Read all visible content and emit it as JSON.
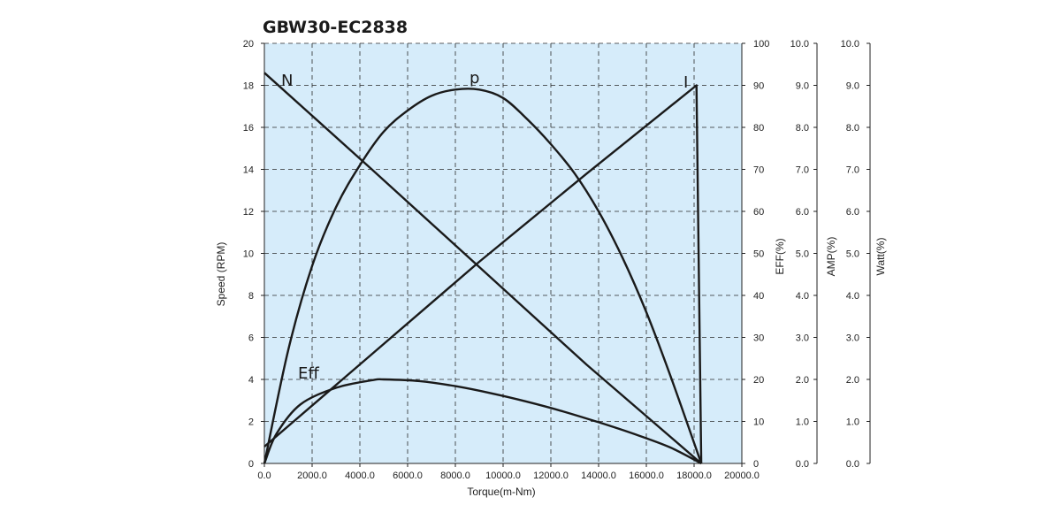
{
  "chart_data": {
    "type": "line",
    "title": "GBW30-EC2838",
    "xlabel": "Torque(m-Nm)",
    "xlim": [
      0,
      20000
    ],
    "x_ticks": [
      "0.0",
      "2000.0",
      "4000.0",
      "6000.0",
      "8000.0",
      "10000.0",
      "12000.0",
      "14000.0",
      "16000.0",
      "18000.0",
      "20000.0"
    ],
    "grid": true,
    "background_color": "#d6ecfa",
    "line_color": "#1a1a1a",
    "axes": {
      "speed": {
        "label": "Speed (RPM)",
        "lim": [
          0,
          20
        ],
        "ticks": [
          "0",
          "2",
          "4",
          "6",
          "8",
          "10",
          "12",
          "14",
          "16",
          "18",
          "20"
        ]
      },
      "eff": {
        "label": "EFF(%)",
        "lim": [
          0,
          100
        ],
        "ticks": [
          "0",
          "10",
          "20",
          "30",
          "40",
          "50",
          "60",
          "70",
          "80",
          "90",
          "100"
        ]
      },
      "amp": {
        "label": "AMP(%)",
        "lim": [
          0,
          10
        ],
        "ticks": [
          "0.0",
          "1.0",
          "2.0",
          "3.0",
          "4.0",
          "5.0",
          "6.0",
          "7.0",
          "8.0",
          "9.0",
          "10.0"
        ]
      },
      "watt": {
        "label": "Watt(%)",
        "lim": [
          0,
          10
        ],
        "ticks": [
          "0.0",
          "1.0",
          "2.0",
          "3.0",
          "4.0",
          "5.0",
          "6.0",
          "7.0",
          "8.0",
          "9.0",
          "10.0"
        ]
      }
    },
    "series": [
      {
        "name": "N",
        "axis": "speed",
        "x": [
          0,
          4500,
          9000,
          13500,
          18300
        ],
        "y": [
          18.6,
          14.0,
          9.35,
          4.7,
          0.0
        ]
      },
      {
        "name": "p",
        "axis": "eff",
        "x": [
          0,
          1000,
          2000,
          3000,
          4000,
          5000,
          6000,
          7000,
          8000,
          9000,
          10000,
          11000,
          12000,
          13000,
          14000,
          15000,
          16000,
          17000,
          18300
        ],
        "y": [
          0,
          27,
          47,
          61,
          71,
          79,
          84,
          87.5,
          89,
          89,
          87,
          82,
          76,
          69,
          60,
          49,
          36,
          21,
          0
        ]
      },
      {
        "name": "I",
        "axis": "amp",
        "x": [
          0,
          4500,
          9000,
          13500,
          18100,
          18300
        ],
        "y": [
          0.4,
          2.6,
          4.8,
          6.9,
          9.0,
          0.0
        ]
      },
      {
        "name": "Eff",
        "axis": "eff",
        "x": [
          0,
          500,
          1500,
          3000,
          4500,
          5000,
          6500,
          8000,
          9500,
          11000,
          12500,
          14000,
          15500,
          17000,
          18300
        ],
        "y": [
          0,
          7,
          14,
          18,
          19.8,
          20,
          19.6,
          18.4,
          16.7,
          14.7,
          12.4,
          9.8,
          7.0,
          3.8,
          0
        ]
      }
    ]
  }
}
